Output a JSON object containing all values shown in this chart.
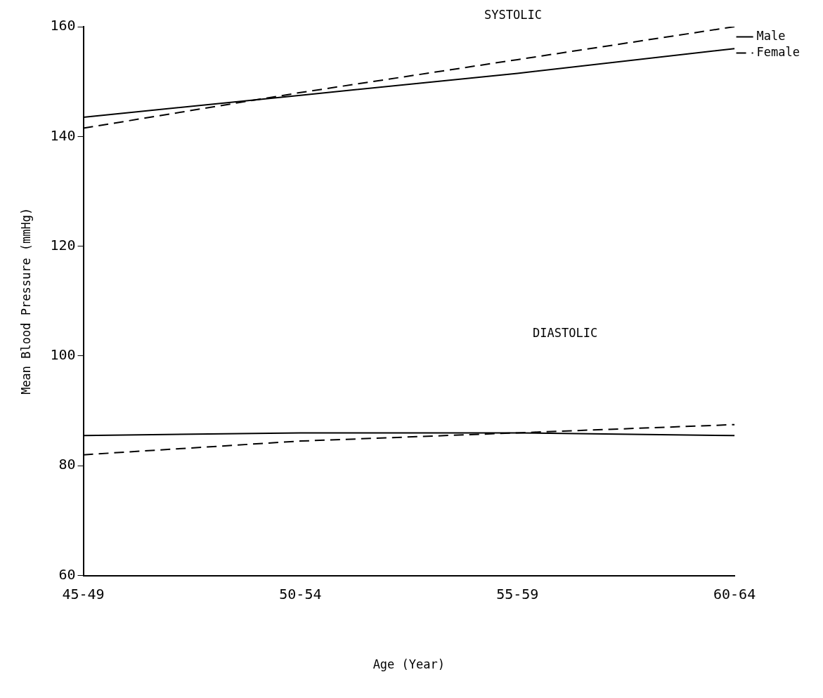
{
  "chart_data": {
    "type": "line",
    "xlabel": "Age (Year)",
    "ylabel": "Mean Blood Pressure (mmHg)",
    "categories": [
      "45-49",
      "50-54",
      "55-59",
      "60-64"
    ],
    "series": [
      {
        "name": "Male",
        "color": "#000000",
        "line_style": "solid",
        "values": [
          143.5,
          147.5,
          151.5,
          156
        ]
      },
      {
        "name": "Female",
        "color": "#000000",
        "line_style": "dashed",
        "values": [
          141.5,
          148,
          154,
          160
        ]
      },
      {
        "color": "#000000",
        "line_style": "solid",
        "values": [
          85.5,
          86,
          86,
          85.5
        ]
      },
      {
        "color": "#000000",
        "line_style": "dashed",
        "values": [
          82,
          84.5,
          86,
          87.5
        ]
      }
    ],
    "ylim": [
      60,
      160
    ],
    "yticks": [
      60,
      80,
      100,
      120,
      140,
      160
    ],
    "annotations": [
      "SYSTOLIC",
      "DIASTOLIC"
    ],
    "grid": false,
    "legend": "top right",
    "marker": "none"
  }
}
